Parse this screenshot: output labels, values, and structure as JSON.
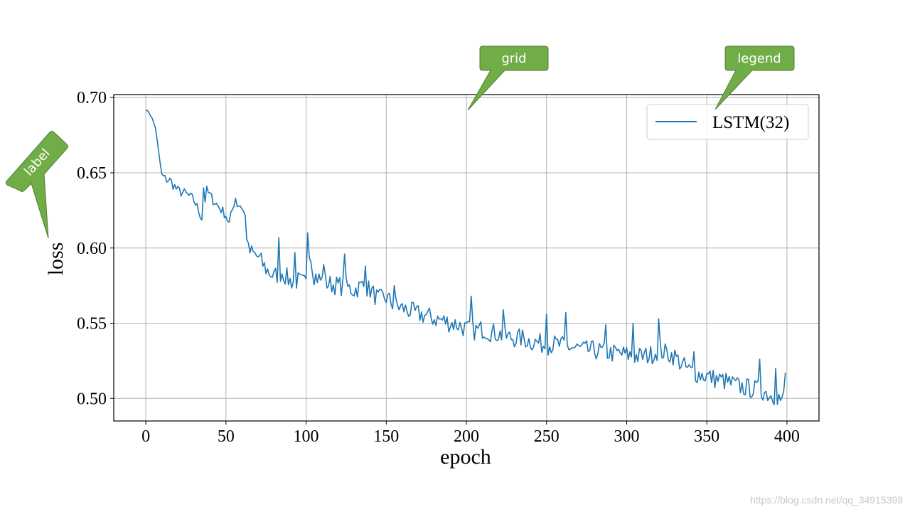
{
  "chart_data": {
    "type": "line",
    "xlabel": "epoch",
    "ylabel": "loss",
    "xlim": [
      -20,
      420
    ],
    "ylim": [
      0.485,
      0.702
    ],
    "xticks": [
      0,
      50,
      100,
      150,
      200,
      250,
      300,
      350,
      400
    ],
    "xtick_labels": [
      "0",
      "50",
      "100",
      "150",
      "200",
      "250",
      "300",
      "350",
      "400"
    ],
    "yticks": [
      0.5,
      0.55,
      0.6,
      0.65,
      0.7
    ],
    "ytick_labels": [
      "0.50",
      "0.55",
      "0.60",
      "0.65",
      "0.70"
    ],
    "grid": true,
    "legend_position": "top-right",
    "series": [
      {
        "name": "LSTM(32)",
        "color": "#1f77b4",
        "anchors": [
          [
            0,
            0.692
          ],
          [
            2,
            0.69
          ],
          [
            4,
            0.686
          ],
          [
            6,
            0.68
          ],
          [
            8,
            0.664
          ],
          [
            10,
            0.648
          ],
          [
            12,
            0.646
          ],
          [
            15,
            0.645
          ],
          [
            20,
            0.638
          ],
          [
            25,
            0.636
          ],
          [
            30,
            0.632
          ],
          [
            35,
            0.62
          ],
          [
            38,
            0.638
          ],
          [
            42,
            0.632
          ],
          [
            45,
            0.628
          ],
          [
            50,
            0.622
          ],
          [
            52,
            0.616
          ],
          [
            55,
            0.63
          ],
          [
            60,
            0.628
          ],
          [
            62,
            0.62
          ],
          [
            64,
            0.598
          ],
          [
            70,
            0.594
          ],
          [
            75,
            0.586
          ],
          [
            80,
            0.581
          ],
          [
            85,
            0.584
          ],
          [
            90,
            0.578
          ],
          [
            95,
            0.578
          ],
          [
            100,
            0.576
          ],
          [
            102,
            0.6
          ],
          [
            105,
            0.582
          ],
          [
            110,
            0.578
          ],
          [
            115,
            0.576
          ],
          [
            120,
            0.575
          ],
          [
            125,
            0.574
          ],
          [
            130,
            0.572
          ],
          [
            135,
            0.575
          ],
          [
            140,
            0.572
          ],
          [
            145,
            0.566
          ],
          [
            150,
            0.567
          ],
          [
            155,
            0.562
          ],
          [
            160,
            0.56
          ],
          [
            165,
            0.558
          ],
          [
            170,
            0.556
          ],
          [
            175,
            0.555
          ],
          [
            180,
            0.553
          ],
          [
            185,
            0.552
          ],
          [
            190,
            0.55
          ],
          [
            195,
            0.549
          ],
          [
            200,
            0.546
          ],
          [
            205,
            0.545
          ],
          [
            210,
            0.546
          ],
          [
            215,
            0.544
          ],
          [
            220,
            0.543
          ],
          [
            225,
            0.541
          ],
          [
            230,
            0.54
          ],
          [
            235,
            0.54
          ],
          [
            240,
            0.538
          ],
          [
            245,
            0.537
          ],
          [
            250,
            0.535
          ],
          [
            255,
            0.536
          ],
          [
            260,
            0.535
          ],
          [
            265,
            0.534
          ],
          [
            270,
            0.533
          ],
          [
            275,
            0.532
          ],
          [
            280,
            0.532
          ],
          [
            285,
            0.531
          ],
          [
            290,
            0.53
          ],
          [
            295,
            0.53
          ],
          [
            300,
            0.529
          ],
          [
            305,
            0.528
          ],
          [
            310,
            0.528
          ],
          [
            315,
            0.529
          ],
          [
            320,
            0.532
          ],
          [
            325,
            0.53
          ],
          [
            330,
            0.528
          ],
          [
            335,
            0.522
          ],
          [
            340,
            0.518
          ],
          [
            345,
            0.516
          ],
          [
            350,
            0.515
          ],
          [
            355,
            0.513
          ],
          [
            360,
            0.512
          ],
          [
            365,
            0.51
          ],
          [
            370,
            0.508
          ],
          [
            375,
            0.507
          ],
          [
            380,
            0.506
          ],
          [
            385,
            0.505
          ],
          [
            390,
            0.502
          ],
          [
            395,
            0.501
          ],
          [
            397,
            0.497
          ],
          [
            398,
            0.502
          ],
          [
            399,
            0.517
          ]
        ],
        "spikes": [
          [
            36,
            0.64
          ],
          [
            56,
            0.633
          ],
          [
            83,
            0.607
          ],
          [
            93,
            0.597
          ],
          [
            101,
            0.61
          ],
          [
            111,
            0.589
          ],
          [
            124,
            0.596
          ],
          [
            137,
            0.588
          ],
          [
            155,
            0.575
          ],
          [
            203,
            0.568
          ],
          [
            223,
            0.559
          ],
          [
            250,
            0.556
          ],
          [
            262,
            0.557
          ],
          [
            287,
            0.549
          ],
          [
            304,
            0.55
          ],
          [
            320,
            0.553
          ],
          [
            342,
            0.531
          ],
          [
            383,
            0.526
          ],
          [
            393,
            0.52
          ]
        ]
      }
    ],
    "annotations": [
      {
        "text": "grid"
      },
      {
        "text": "legend"
      },
      {
        "text": "label"
      }
    ]
  },
  "watermark": "https://blog.csdn.net/qq_34915398"
}
